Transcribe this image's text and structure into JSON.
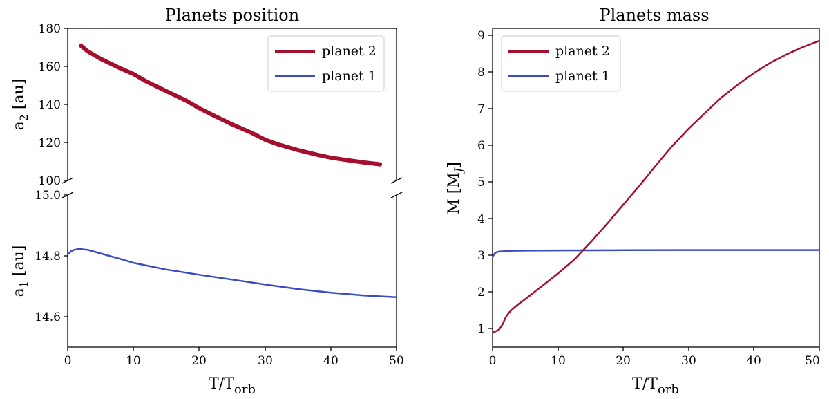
{
  "colors": {
    "planet2": "#a50f2e",
    "planet1": "#3b4cc0"
  },
  "chart_data": [
    {
      "type": "line",
      "title": "Planets position",
      "xlabel": {
        "base": "T/T",
        "sub": "orb"
      },
      "xlim": [
        0,
        50
      ],
      "xticks": [
        0,
        10,
        20,
        30,
        40,
        50
      ],
      "x_tick_labels": [
        "0",
        "10",
        "20",
        "30",
        "40",
        "50"
      ],
      "upper_axis": {
        "ylabel": {
          "base": "a",
          "sub": "2",
          "unit": " [au]"
        },
        "ylim": [
          100,
          180
        ],
        "yticks": [
          100,
          120,
          140,
          160,
          180
        ],
        "y_tick_labels": [
          "100",
          "120",
          "140",
          "160",
          "180"
        ]
      },
      "lower_axis": {
        "ylabel": {
          "base": "a",
          "sub": "1",
          "unit": " [au]"
        },
        "ylim": [
          14.5,
          15.0
        ],
        "yticks": [
          14.6,
          14.8,
          15.0
        ],
        "y_tick_labels": [
          "14.6",
          "14.8",
          "15.0"
        ]
      },
      "legend": {
        "position": "top-right",
        "entries": [
          "planet 2",
          "planet 1"
        ]
      },
      "series": [
        {
          "name": "planet 2",
          "axis": "upper",
          "x": [
            2,
            3,
            5,
            8,
            10,
            12,
            15,
            18,
            20,
            22,
            25,
            28,
            30,
            32,
            35,
            38,
            40,
            42,
            45,
            47.5
          ],
          "y": [
            171,
            168,
            164,
            159,
            156,
            152,
            147,
            142,
            138,
            134.5,
            129.5,
            125,
            121.5,
            119,
            116,
            113.5,
            112,
            111,
            109.5,
            108.5
          ]
        },
        {
          "name": "planet 1",
          "axis": "lower",
          "x": [
            0,
            0.5,
            1,
            1.5,
            2,
            3,
            5,
            8,
            10,
            15,
            20,
            25,
            30,
            35,
            40,
            45,
            50
          ],
          "y": [
            14.805,
            14.815,
            14.82,
            14.822,
            14.822,
            14.82,
            14.808,
            14.79,
            14.777,
            14.755,
            14.738,
            14.722,
            14.706,
            14.691,
            14.679,
            14.67,
            14.664
          ]
        }
      ]
    },
    {
      "type": "line",
      "title": "Planets mass",
      "xlabel": {
        "base": "T/T",
        "sub": "orb"
      },
      "ylabel": {
        "base": "M [M",
        "sub": "J",
        "unit": "]"
      },
      "xlim": [
        0,
        50
      ],
      "ylim": [
        0.5,
        9.2
      ],
      "xticks": [
        0,
        10,
        20,
        30,
        40,
        50
      ],
      "x_tick_labels": [
        "0",
        "10",
        "20",
        "30",
        "40",
        "50"
      ],
      "yticks": [
        1,
        2,
        3,
        4,
        5,
        6,
        7,
        8,
        9
      ],
      "y_tick_labels": [
        "1",
        "2",
        "3",
        "4",
        "5",
        "6",
        "7",
        "8",
        "9"
      ],
      "legend": {
        "position": "top-left",
        "entries": [
          "planet 2",
          "planet 1"
        ]
      },
      "series": [
        {
          "name": "planet 2",
          "x": [
            0,
            0.5,
            1,
            1.5,
            2,
            2.5,
            3,
            4,
            5,
            7.5,
            10,
            12.5,
            15,
            17.5,
            20,
            22.5,
            25,
            27.5,
            30,
            32.5,
            35,
            37.5,
            40,
            42.5,
            45,
            47.5,
            50
          ],
          "y": [
            0.9,
            0.92,
            0.97,
            1.1,
            1.3,
            1.43,
            1.52,
            1.67,
            1.8,
            2.15,
            2.5,
            2.88,
            3.35,
            3.85,
            4.38,
            4.9,
            5.45,
            5.98,
            6.45,
            6.88,
            7.3,
            7.65,
            7.97,
            8.25,
            8.48,
            8.68,
            8.85
          ]
        },
        {
          "name": "planet 1",
          "x": [
            0,
            0.3,
            0.6,
            1,
            2,
            3,
            5,
            10,
            20,
            30,
            40,
            50
          ],
          "y": [
            2.95,
            3.04,
            3.08,
            3.1,
            3.11,
            3.12,
            3.125,
            3.13,
            3.135,
            3.14,
            3.14,
            3.14
          ]
        }
      ]
    }
  ]
}
